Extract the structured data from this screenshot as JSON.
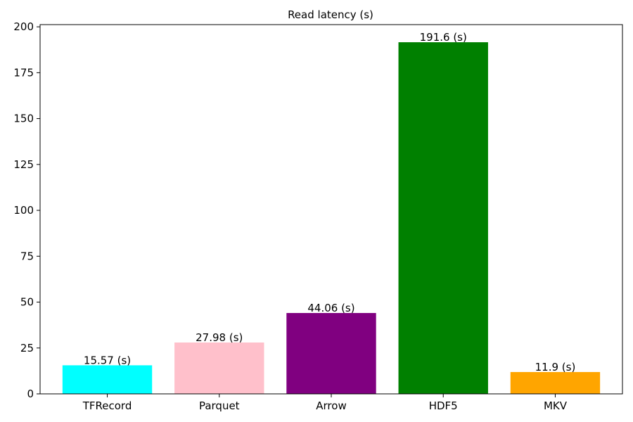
{
  "chart_data": {
    "type": "bar",
    "title": "Read latency (s)",
    "xlabel": "",
    "ylabel": "",
    "categories": [
      "TFRecord",
      "Parquet",
      "Arrow",
      "HDF5",
      "MKV"
    ],
    "values": [
      15.57,
      27.98,
      44.06,
      191.6,
      11.9
    ],
    "data_labels": [
      "15.57 (s)",
      "27.98 (s)",
      "44.06 (s)",
      "191.6 (s)",
      "11.9 (s)"
    ],
    "colors": [
      "#00ffff",
      "#ffc0cb",
      "#800080",
      "#008000",
      "#ffa500"
    ],
    "ylim": [
      0,
      201.2
    ],
    "yticks": [
      0,
      25,
      50,
      75,
      100,
      125,
      150,
      175,
      200
    ],
    "grid": false,
    "legend": "none"
  }
}
